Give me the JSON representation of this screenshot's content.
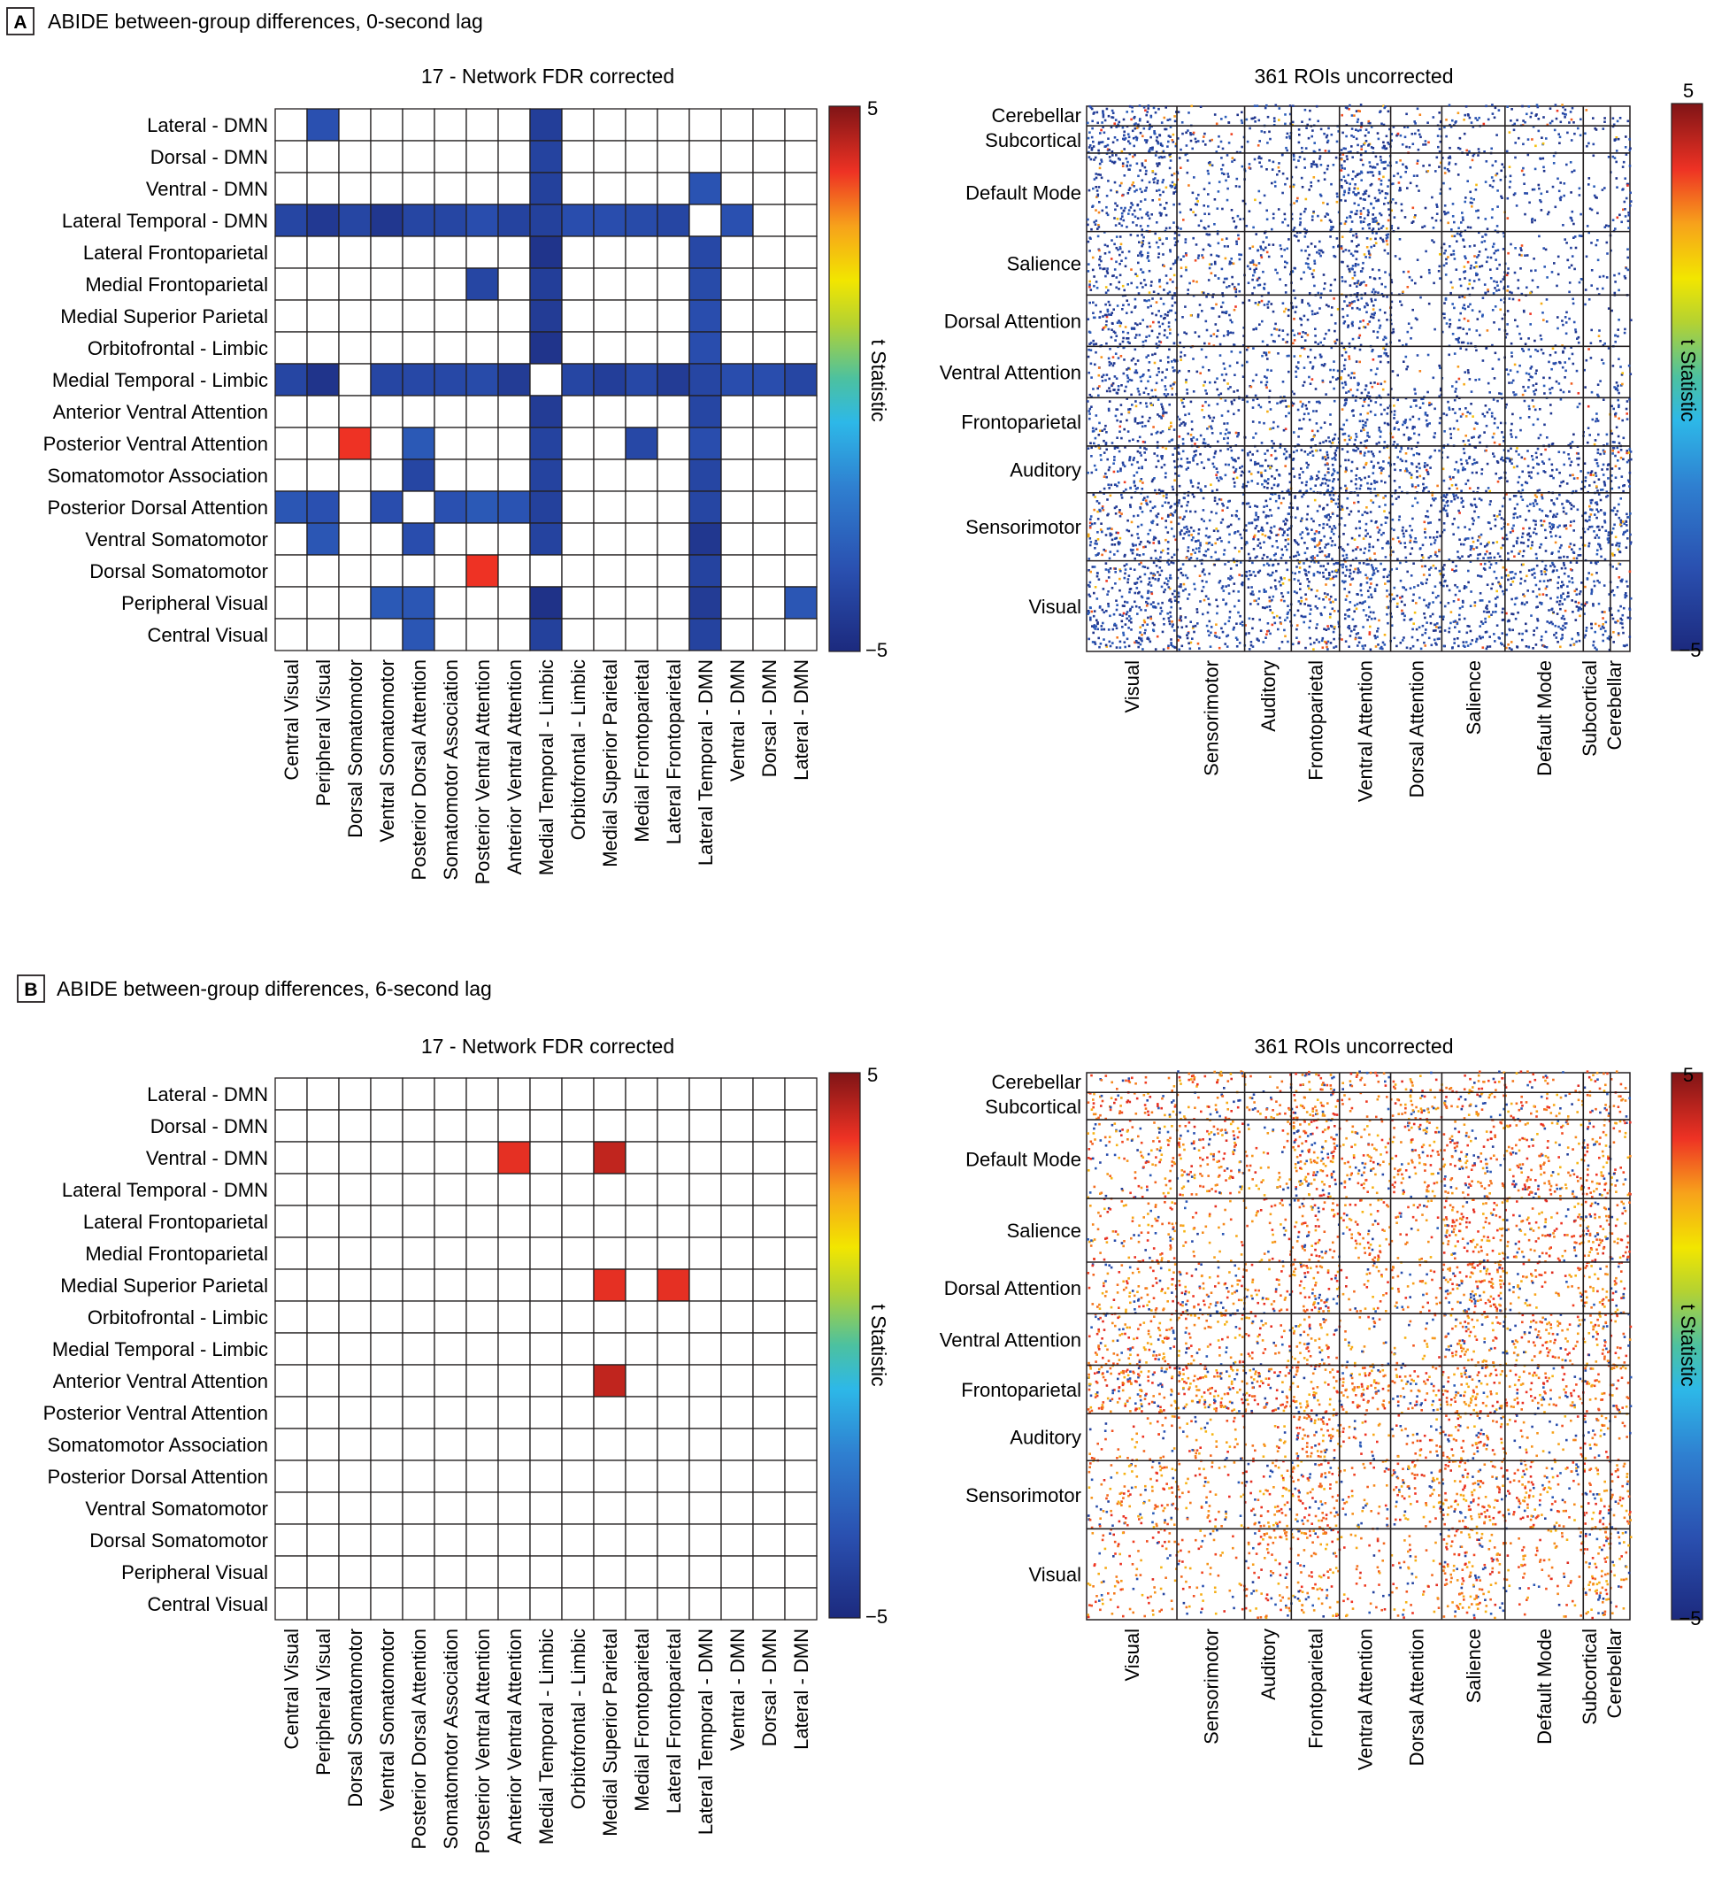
{
  "panels": [
    {
      "letter": "A",
      "title": "ABIDE between-group differences, 0-second lag",
      "left_title": "17 - Network FDR corrected",
      "right_title": "361 ROIs uncorrected",
      "colorbar_label": "t Statistic",
      "colorbar_max": "5",
      "colorbar_min": "−5"
    },
    {
      "letter": "B",
      "title": "ABIDE between-group differences, 6-second lag",
      "left_title": "17 - Network FDR corrected",
      "right_title": "361 ROIs uncorrected",
      "colorbar_label": "t Statistic",
      "colorbar_max": "5",
      "colorbar_min": "−5"
    }
  ],
  "chart_data": [
    {
      "type": "heatmap",
      "panel": "A",
      "title": "17 - Network FDR corrected",
      "row_labels": [
        "Lateral - DMN",
        "Dorsal - DMN",
        "Ventral - DMN",
        "Lateral Temporal - DMN",
        "Lateral Frontoparietal",
        "Medial Frontoparietal",
        "Medial Superior Parietal",
        "Orbitofrontal - Limbic",
        "Medial Temporal - Limbic",
        "Anterior Ventral Attention",
        "Posterior Ventral Attention",
        "Somatomotor Association",
        "Posterior Dorsal Attention",
        "Ventral Somatomotor",
        "Dorsal Somatomotor",
        "Peripheral Visual",
        "Central Visual"
      ],
      "col_labels": [
        "Central Visual",
        "Peripheral Visual",
        "Dorsal Somatomotor",
        "Ventral Somatomotor",
        "Posterior Dorsal Attention",
        "Somatomotor Association",
        "Posterior Ventral Attention",
        "Anterior Ventral Attention",
        "Medial Temporal - Limbic",
        "Orbitofrontal - Limbic",
        "Medial Superior Parietal",
        "Medial Frontoparietal",
        "Lateral Frontoparietal",
        "Lateral Temporal - DMN",
        "Ventral - DMN",
        "Dorsal - DMN",
        "Lateral - DMN"
      ],
      "colorbar_range": [
        -5,
        5
      ],
      "colorbar_label": "t Statistic",
      "significant_cells": [
        {
          "row": 0,
          "col": 1,
          "t": -3.5
        },
        {
          "row": 0,
          "col": 8,
          "t": -4.2
        },
        {
          "row": 1,
          "col": 8,
          "t": -4.0
        },
        {
          "row": 2,
          "col": 8,
          "t": -4.1
        },
        {
          "row": 2,
          "col": 13,
          "t": -3.4
        },
        {
          "row": 3,
          "col": 0,
          "t": -3.9
        },
        {
          "row": 3,
          "col": 1,
          "t": -4.4
        },
        {
          "row": 3,
          "col": 2,
          "t": -3.9
        },
        {
          "row": 3,
          "col": 3,
          "t": -4.5
        },
        {
          "row": 3,
          "col": 4,
          "t": -3.9
        },
        {
          "row": 3,
          "col": 5,
          "t": -3.9
        },
        {
          "row": 3,
          "col": 6,
          "t": -3.6
        },
        {
          "row": 3,
          "col": 7,
          "t": -4.0
        },
        {
          "row": 3,
          "col": 8,
          "t": -4.1
        },
        {
          "row": 3,
          "col": 9,
          "t": -3.6
        },
        {
          "row": 3,
          "col": 10,
          "t": -3.6
        },
        {
          "row": 3,
          "col": 11,
          "t": -3.7
        },
        {
          "row": 3,
          "col": 12,
          "t": -3.9
        },
        {
          "row": 3,
          "col": 14,
          "t": -3.5
        },
        {
          "row": 4,
          "col": 8,
          "t": -4.6
        },
        {
          "row": 4,
          "col": 13,
          "t": -3.8
        },
        {
          "row": 5,
          "col": 6,
          "t": -3.9
        },
        {
          "row": 5,
          "col": 8,
          "t": -4.2
        },
        {
          "row": 5,
          "col": 13,
          "t": -3.7
        },
        {
          "row": 6,
          "col": 8,
          "t": -4.3
        },
        {
          "row": 6,
          "col": 13,
          "t": -3.6
        },
        {
          "row": 7,
          "col": 8,
          "t": -4.6
        },
        {
          "row": 7,
          "col": 13,
          "t": -3.6
        },
        {
          "row": 8,
          "col": 0,
          "t": -3.9
        },
        {
          "row": 8,
          "col": 1,
          "t": -4.6
        },
        {
          "row": 8,
          "col": 3,
          "t": -3.9
        },
        {
          "row": 8,
          "col": 4,
          "t": -3.8
        },
        {
          "row": 8,
          "col": 5,
          "t": -3.8
        },
        {
          "row": 8,
          "col": 6,
          "t": -3.7
        },
        {
          "row": 8,
          "col": 7,
          "t": -4.3
        },
        {
          "row": 8,
          "col": 9,
          "t": -3.9
        },
        {
          "row": 8,
          "col": 10,
          "t": -4.2
        },
        {
          "row": 8,
          "col": 11,
          "t": -3.8
        },
        {
          "row": 8,
          "col": 12,
          "t": -4.3
        },
        {
          "row": 8,
          "col": 13,
          "t": -3.9
        },
        {
          "row": 8,
          "col": 14,
          "t": -3.6
        },
        {
          "row": 8,
          "col": 15,
          "t": -3.6
        },
        {
          "row": 8,
          "col": 16,
          "t": -3.9
        },
        {
          "row": 9,
          "col": 8,
          "t": -4.3
        },
        {
          "row": 9,
          "col": 13,
          "t": -3.9
        },
        {
          "row": 10,
          "col": 2,
          "t": 3.8
        },
        {
          "row": 10,
          "col": 4,
          "t": -3.2
        },
        {
          "row": 10,
          "col": 8,
          "t": -4.0
        },
        {
          "row": 10,
          "col": 11,
          "t": -3.8
        },
        {
          "row": 10,
          "col": 13,
          "t": -3.6
        },
        {
          "row": 11,
          "col": 4,
          "t": -3.9
        },
        {
          "row": 11,
          "col": 8,
          "t": -4.0
        },
        {
          "row": 11,
          "col": 13,
          "t": -3.9
        },
        {
          "row": 12,
          "col": 0,
          "t": -3.3
        },
        {
          "row": 12,
          "col": 1,
          "t": -3.5
        },
        {
          "row": 12,
          "col": 3,
          "t": -3.6
        },
        {
          "row": 12,
          "col": 5,
          "t": -3.5
        },
        {
          "row": 12,
          "col": 6,
          "t": -3.2
        },
        {
          "row": 12,
          "col": 7,
          "t": -3.4
        },
        {
          "row": 12,
          "col": 8,
          "t": -4.1
        },
        {
          "row": 12,
          "col": 13,
          "t": -3.9
        },
        {
          "row": 13,
          "col": 1,
          "t": -3.3
        },
        {
          "row": 13,
          "col": 4,
          "t": -3.6
        },
        {
          "row": 13,
          "col": 8,
          "t": -4.0
        },
        {
          "row": 13,
          "col": 13,
          "t": -4.5
        },
        {
          "row": 14,
          "col": 6,
          "t": 3.8
        },
        {
          "row": 14,
          "col": 13,
          "t": -4.0
        },
        {
          "row": 15,
          "col": 3,
          "t": -3.2
        },
        {
          "row": 15,
          "col": 4,
          "t": -3.3
        },
        {
          "row": 15,
          "col": 8,
          "t": -4.7
        },
        {
          "row": 15,
          "col": 13,
          "t": -4.3
        },
        {
          "row": 15,
          "col": 16,
          "t": -3.3
        },
        {
          "row": 16,
          "col": 4,
          "t": -3.3
        },
        {
          "row": 16,
          "col": 8,
          "t": -4.1
        },
        {
          "row": 16,
          "col": 13,
          "t": -4.0
        }
      ]
    },
    {
      "type": "heatmap",
      "panel": "A",
      "title": "361 ROIs uncorrected",
      "row_labels": [
        "Cerebellar",
        "Subcortical",
        "Default Mode",
        "Salience",
        "Dorsal Attention",
        "Ventral Attention",
        "Frontoparietal",
        "Auditory",
        "Sensorimotor",
        "Visual"
      ],
      "col_labels": [
        "Visual",
        "Sensorimotor",
        "Auditory",
        "Frontoparietal",
        "Ventral Attention",
        "Dorsal Attention",
        "Salience",
        "Default Mode",
        "Subcortical",
        "Cerebellar"
      ],
      "colorbar_range": [
        -5,
        5
      ],
      "colorbar_label": "t Statistic",
      "predominant_sign": "negative"
    },
    {
      "type": "heatmap",
      "panel": "B",
      "title": "17 - Network FDR corrected",
      "row_labels": [
        "Lateral - DMN",
        "Dorsal - DMN",
        "Ventral - DMN",
        "Lateral Temporal - DMN",
        "Lateral Frontoparietal",
        "Medial Frontoparietal",
        "Medial Superior Parietal",
        "Orbitofrontal - Limbic",
        "Medial Temporal - Limbic",
        "Anterior Ventral Attention",
        "Posterior Ventral Attention",
        "Somatomotor Association",
        "Posterior Dorsal Attention",
        "Ventral Somatomotor",
        "Dorsal Somatomotor",
        "Peripheral Visual",
        "Central Visual"
      ],
      "col_labels": [
        "Central Visual",
        "Peripheral Visual",
        "Dorsal Somatomotor",
        "Ventral Somatomotor",
        "Posterior Dorsal Attention",
        "Somatomotor Association",
        "Posterior Ventral Attention",
        "Anterior Ventral Attention",
        "Medial Temporal - Limbic",
        "Orbitofrontal - Limbic",
        "Medial Superior Parietal",
        "Medial Frontoparietal",
        "Lateral Frontoparietal",
        "Lateral Temporal - DMN",
        "Ventral - DMN",
        "Dorsal - DMN",
        "Lateral - DMN"
      ],
      "colorbar_range": [
        -5,
        5
      ],
      "colorbar_label": "t Statistic",
      "significant_cells": [
        {
          "row": 2,
          "col": 7,
          "t": 3.9
        },
        {
          "row": 2,
          "col": 10,
          "t": 4.3
        },
        {
          "row": 6,
          "col": 10,
          "t": 3.9
        },
        {
          "row": 6,
          "col": 12,
          "t": 3.9
        },
        {
          "row": 9,
          "col": 10,
          "t": 4.3
        }
      ]
    },
    {
      "type": "heatmap",
      "panel": "B",
      "title": "361 ROIs uncorrected",
      "row_labels": [
        "Cerebellar",
        "Subcortical",
        "Default Mode",
        "Salience",
        "Dorsal Attention",
        "Ventral Attention",
        "Frontoparietal",
        "Auditory",
        "Sensorimotor",
        "Visual"
      ],
      "col_labels": [
        "Visual",
        "Sensorimotor",
        "Auditory",
        "Frontoparietal",
        "Ventral Attention",
        "Dorsal Attention",
        "Salience",
        "Default Mode",
        "Subcortical",
        "Cerebellar"
      ],
      "colorbar_range": [
        -5,
        5
      ],
      "colorbar_label": "t Statistic",
      "predominant_sign": "positive"
    }
  ]
}
